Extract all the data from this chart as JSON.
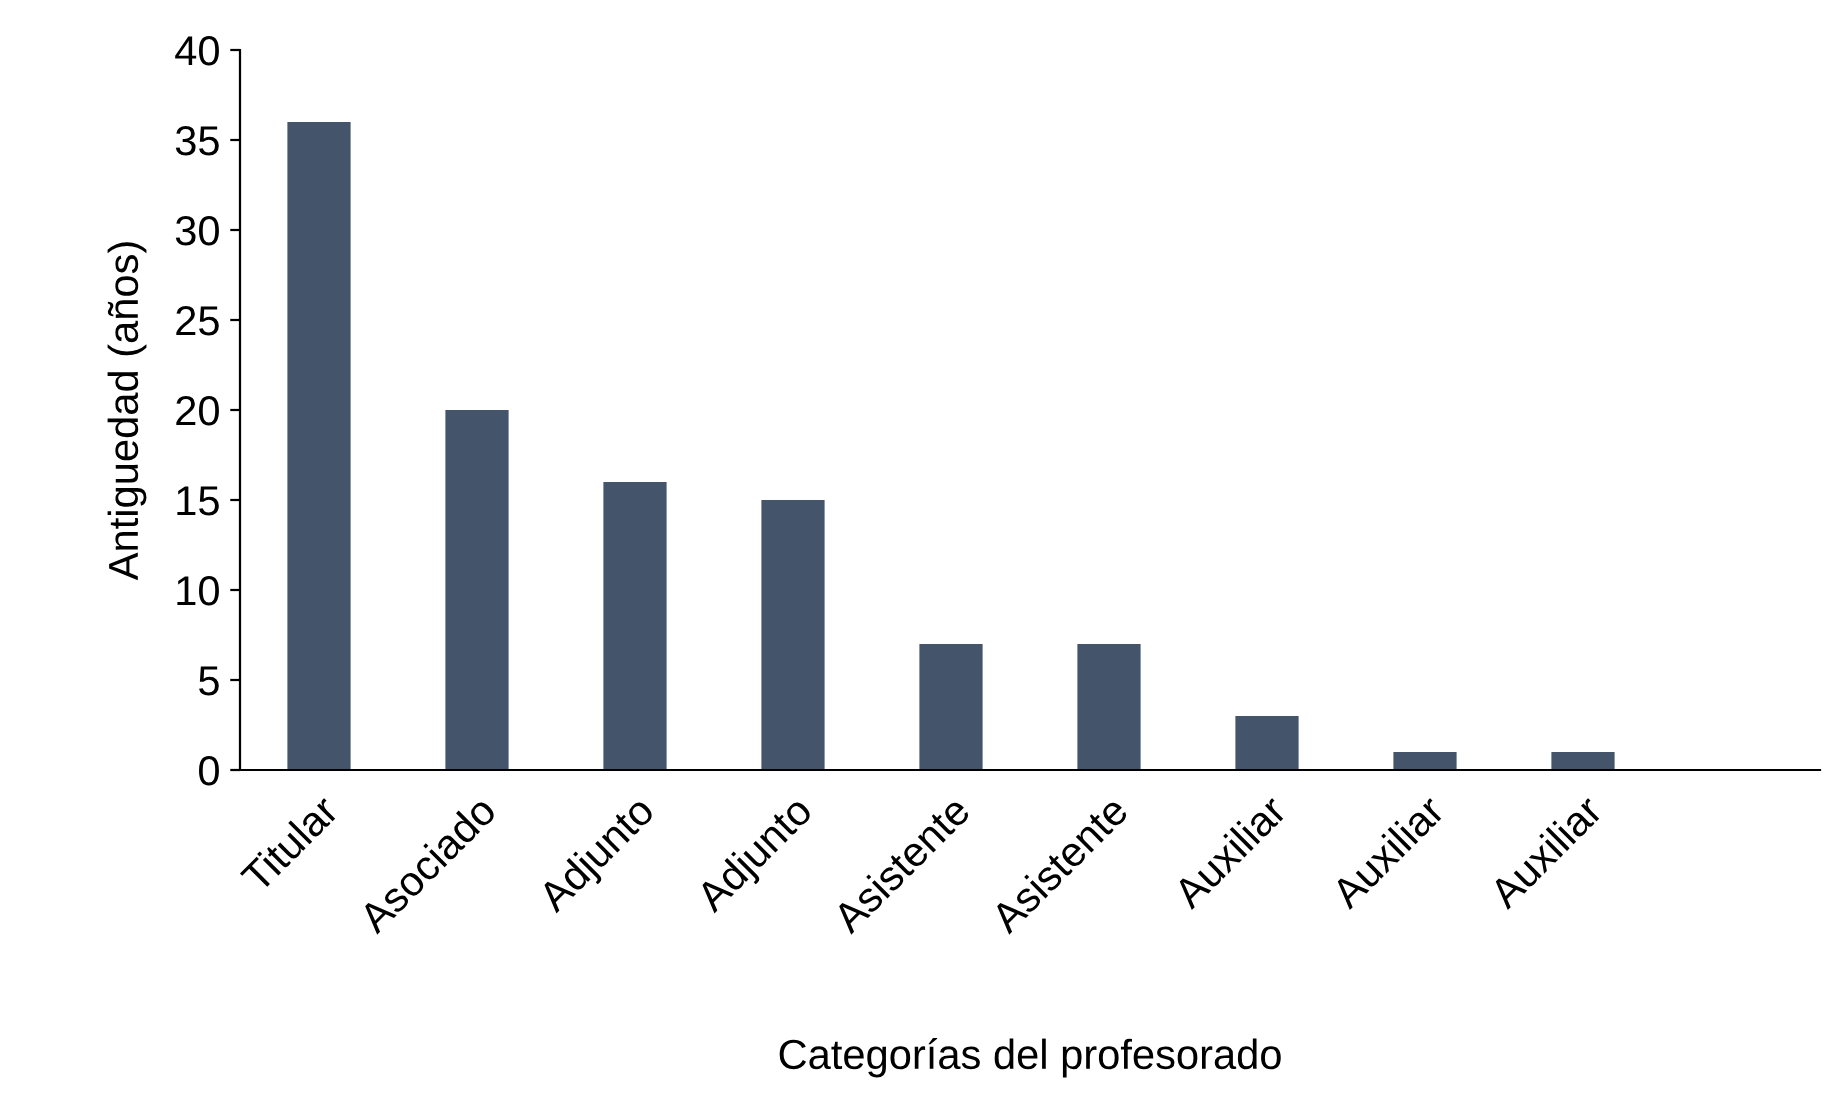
{
  "chart_data": {
    "type": "bar",
    "xlabel": "Categorías del profesorado",
    "ylabel": "Antiguedad (años)",
    "categories": [
      "Titular",
      "Asociado",
      "Adjunto",
      "Adjunto",
      "Asistente",
      "Asistente",
      "Auxiliar",
      "Auxiliar",
      "Auxiliar",
      null
    ],
    "values": [
      36,
      20,
      16,
      15,
      7,
      7,
      3,
      1,
      1,
      null
    ],
    "color": "#44546a",
    "ylim": [
      0,
      40
    ],
    "yticks": [
      0,
      5,
      10,
      15,
      20,
      25,
      30,
      35,
      40
    ],
    "grid": false,
    "legend": false
  }
}
